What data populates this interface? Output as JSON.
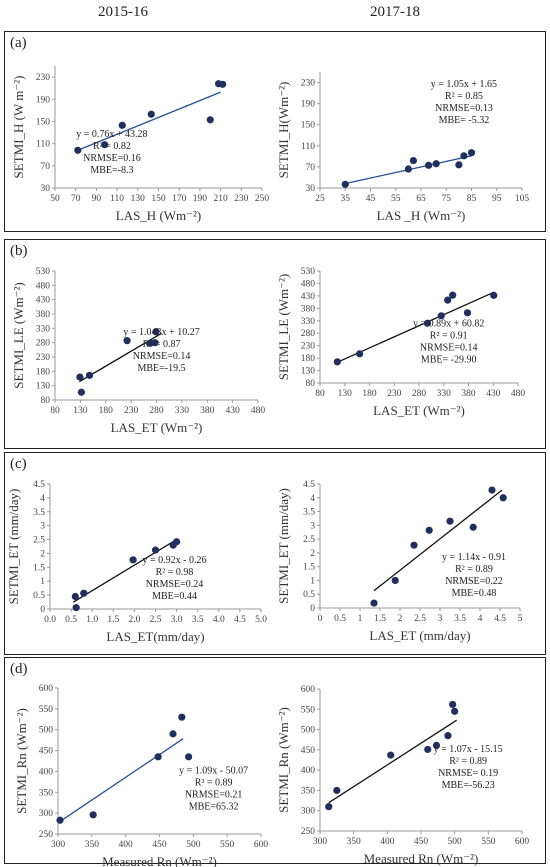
{
  "figure": {
    "col_titles": [
      "2015-16",
      "2017-18"
    ],
    "panel_labels": [
      "(a)",
      "(b)",
      "(c)",
      "(d)"
    ]
  },
  "chart_data": [
    {
      "type": "scatter",
      "panel": "(a)",
      "column": "2015-16",
      "xlabel": "LAS_H (Wm⁻²)",
      "ylabel": "SETMI_H (W m⁻²)",
      "xlim": [
        50,
        250
      ],
      "xticks": [
        50,
        70,
        90,
        110,
        130,
        150,
        170,
        190,
        210,
        230,
        250
      ],
      "ylim": [
        30,
        250
      ],
      "yticks": [
        30,
        70,
        110,
        150,
        190,
        230
      ],
      "points": [
        [
          72,
          98
        ],
        [
          98,
          108
        ],
        [
          115,
          143
        ],
        [
          143,
          163
        ],
        [
          200,
          153
        ],
        [
          208,
          218
        ],
        [
          212,
          217
        ]
      ],
      "trendline": {
        "slope": 0.76,
        "intercept": 43.28,
        "x_range": [
          70,
          210
        ]
      },
      "annotations": [
        "y = 0.76x + 43.28",
        "R² = 0.82",
        "NRMSE=0.16",
        "MBE=-8.3"
      ],
      "annotation_pos": [
        105,
        122
      ]
    },
    {
      "type": "scatter",
      "panel": "(a)",
      "column": "2017-18",
      "xlabel": "LAS _H (Wm⁻²)",
      "ylabel": "SETMI_H(Wm⁻²)",
      "xlim": [
        25,
        105
      ],
      "xticks": [
        25,
        35,
        45,
        55,
        65,
        75,
        85,
        95,
        105
      ],
      "ylim": [
        30,
        250
      ],
      "yticks": [
        30,
        70,
        110,
        150,
        190,
        230
      ],
      "points": [
        [
          35,
          37
        ],
        [
          60,
          66
        ],
        [
          62,
          82
        ],
        [
          68,
          73
        ],
        [
          71,
          76
        ],
        [
          80,
          74
        ],
        [
          82,
          91
        ],
        [
          85,
          97
        ]
      ],
      "trendline": {
        "slope": 1.05,
        "intercept": 1.65,
        "x_range": [
          34,
          85
        ]
      },
      "annotations": [
        "y = 1.05x + 1.65",
        "R² = 0.85",
        "NRMSE=0.13",
        "MBE= -5.32"
      ],
      "annotation_pos": [
        82,
        222
      ]
    },
    {
      "type": "scatter",
      "panel": "(b)",
      "column": "2015-16",
      "xlabel": "LAS_ET (Wm⁻²)",
      "ylabel": "SETMI_LE (Wm⁻²)",
      "xlim": [
        80,
        480
      ],
      "xticks": [
        80,
        130,
        180,
        230,
        280,
        330,
        380,
        430,
        480
      ],
      "ylim": [
        80,
        530
      ],
      "yticks": [
        80,
        130,
        180,
        230,
        280,
        330,
        380,
        430,
        480,
        530
      ],
      "points": [
        [
          129,
          160
        ],
        [
          132,
          107
        ],
        [
          148,
          166
        ],
        [
          222,
          287
        ],
        [
          268,
          278
        ],
        [
          277,
          280
        ],
        [
          279,
          318
        ]
      ],
      "trendline": {
        "slope": 1.043,
        "intercept": 10.27,
        "x_range": [
          128,
          290
        ]
      },
      "annotations": [
        "y = 1.043x + 10.27",
        "R² = 0.87",
        "NRMSE=0.14",
        "MBE=-19.5"
      ],
      "annotation_pos": [
        290,
        307
      ]
    },
    {
      "type": "scatter",
      "panel": "(b)",
      "column": "2017-18",
      "xlabel": "LAS_ET (Wm⁻²)",
      "ylabel": "SETMI_LE (Wm⁻²)",
      "xlim": [
        80,
        480
      ],
      "xticks": [
        80,
        130,
        180,
        230,
        280,
        330,
        380,
        430,
        480
      ],
      "ylim": [
        80,
        530
      ],
      "yticks": [
        80,
        130,
        180,
        230,
        280,
        330,
        380,
        430,
        480,
        530
      ],
      "points": [
        [
          115,
          165
        ],
        [
          160,
          197
        ],
        [
          297,
          320
        ],
        [
          325,
          350
        ],
        [
          338,
          413
        ],
        [
          348,
          433
        ],
        [
          378,
          362
        ],
        [
          431,
          432
        ]
      ],
      "trendline": {
        "slope": 0.89,
        "intercept": 60.82,
        "x_range": [
          112,
          432
        ]
      },
      "annotations": [
        "y = 0.89x + 60.82",
        "R² = 0.91",
        "NRMSE=0.14",
        "MBE= -29.90"
      ],
      "annotation_pos": [
        340,
        308
      ]
    },
    {
      "type": "scatter",
      "panel": "(c)",
      "column": "2015-16",
      "xlabel": "LAS_ET(mm/day)",
      "ylabel": "SETMI_ET (mm/day)",
      "xlim": [
        0,
        5
      ],
      "xticks": [
        "0.0",
        "0.5",
        "1.0",
        "1.5",
        "2.0",
        "2.5",
        "3.0",
        "3.5",
        "4.0",
        "4.5",
        "5.0"
      ],
      "ylim": [
        0,
        4.5
      ],
      "yticks": [
        "0",
        "0.5",
        "1",
        "1.5",
        "2",
        "2.5",
        "3",
        "3.5",
        "4",
        "4.5"
      ],
      "points": [
        [
          0.6,
          0.45
        ],
        [
          0.62,
          0.05
        ],
        [
          0.8,
          0.57
        ],
        [
          1.97,
          1.77
        ],
        [
          2.5,
          2.12
        ],
        [
          2.92,
          2.3
        ],
        [
          3.0,
          2.42
        ]
      ],
      "trendline": {
        "slope": 0.92,
        "intercept": -0.26,
        "x_range": [
          0.55,
          3.0
        ]
      },
      "annotations": [
        "y = 0.92x - 0.26",
        "R² = 0.98",
        "NRMSE=0.24",
        "MBE=0.44"
      ],
      "annotation_pos": [
        2.95,
        1.65
      ]
    },
    {
      "type": "scatter",
      "panel": "(c)",
      "column": "2017-18",
      "xlabel": "LAS_ET (mm/day)",
      "ylabel": "SETMI_ET (mm/day)",
      "xlim": [
        0,
        5
      ],
      "xticks": [
        "0",
        "0.5",
        "1",
        "1.5",
        "2",
        "2.5",
        "3",
        "3.5",
        "4",
        "4.5",
        "5"
      ],
      "ylim": [
        0,
        4.5
      ],
      "yticks": [
        "0",
        "0.5",
        "1",
        "1.5",
        "2",
        "2.5",
        "3",
        "3.5",
        "4",
        "4.5"
      ],
      "points": [
        [
          1.35,
          0.18
        ],
        [
          1.88,
          1.0
        ],
        [
          2.35,
          2.28
        ],
        [
          2.73,
          2.82
        ],
        [
          3.25,
          3.15
        ],
        [
          3.83,
          2.93
        ],
        [
          4.3,
          4.28
        ],
        [
          4.58,
          4.0
        ]
      ],
      "trendline": {
        "slope": 1.14,
        "intercept": -0.91,
        "x_range": [
          1.35,
          4.55
        ]
      },
      "annotations": [
        "y = 1.14x - 0.91",
        "R² = 0.89",
        "NRMSE=0.22",
        "MBE=0.48"
      ],
      "annotation_pos": [
        3.85,
        1.75
      ]
    },
    {
      "type": "scatter",
      "panel": "(d)",
      "column": "2015-16",
      "xlabel": "Measured Rn (Wm⁻²)",
      "ylabel": "SETMI_Rn (Wm⁻²)",
      "xlim": [
        300,
        600
      ],
      "xticks": [
        300,
        350,
        400,
        450,
        500,
        550,
        600
      ],
      "ylim": [
        250,
        600
      ],
      "yticks": [
        250,
        300,
        350,
        400,
        450,
        500,
        550,
        600
      ],
      "points": [
        [
          303,
          283
        ],
        [
          352,
          296
        ],
        [
          448,
          435
        ],
        [
          470,
          490
        ],
        [
          483,
          530
        ],
        [
          493,
          435
        ]
      ],
      "trendline": {
        "slope": 1.09,
        "intercept": -50.07,
        "x_range": [
          303,
          485
        ]
      },
      "annotations": [
        "y = 1.09x - 50.07",
        "R² = 0.89",
        "NRMSE=0.21",
        "MBE=65.32"
      ],
      "annotation_pos": [
        530,
        395
      ]
    },
    {
      "type": "scatter",
      "panel": "(d)",
      "column": "2017-18",
      "xlabel": "Measured Rn (Wm⁻²)",
      "ylabel": "SETMI_Rn (Wm⁻²)",
      "xlim": [
        300,
        600
      ],
      "xticks": [
        300,
        350,
        400,
        450,
        500,
        550,
        600
      ],
      "ylim": [
        250,
        600
      ],
      "yticks": [
        250,
        300,
        350,
        400,
        450,
        500,
        550,
        600
      ],
      "points": [
        [
          313,
          310
        ],
        [
          325,
          350
        ],
        [
          405,
          437
        ],
        [
          460,
          451
        ],
        [
          473,
          461
        ],
        [
          490,
          485
        ],
        [
          497,
          562
        ],
        [
          500,
          545
        ]
      ],
      "trendline": {
        "slope": 1.07,
        "intercept": -15.15,
        "x_range": [
          313,
          503
        ]
      },
      "annotations": [
        "y = 1.07x - 15.15",
        "R² = 0.89",
        "NRMSE= 0.19",
        "MBE=-56.23"
      ],
      "annotation_pos": [
        520,
        445
      ]
    }
  ]
}
